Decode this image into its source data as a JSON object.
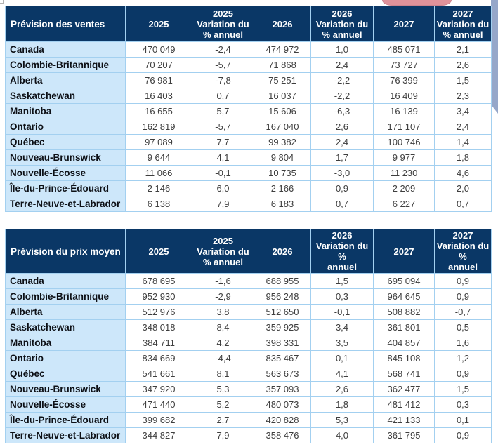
{
  "decor": {
    "header_navy": "#0a3766",
    "row_label_blue": "#cde7fa",
    "grid_border_blue": "#a3d0f0",
    "pink_shape_color": "#e0929a",
    "scroll_strip_color": "#96a7c9"
  },
  "chart_data": [
    {
      "type": "table",
      "title": "Prévision des ventes",
      "header": [
        "2025",
        "2025\nVariation du\n% annuel",
        "2026",
        "2026\nVariation du\n% annuel",
        "2027",
        "2027\nVariation du\n% annuel"
      ],
      "rows": [
        {
          "label": "Canada",
          "values": [
            "470 049",
            "-2,4",
            "474 972",
            "1,0",
            "485 071",
            "2,1"
          ]
        },
        {
          "label": "Colombie-Britannique",
          "values": [
            "70 207",
            "-5,7",
            "71 868",
            "2,4",
            "73 727",
            "2,6"
          ]
        },
        {
          "label": "Alberta",
          "values": [
            "76 981",
            "-7,8",
            "75 251",
            "-2,2",
            "76 399",
            "1,5"
          ]
        },
        {
          "label": "Saskatchewan",
          "values": [
            "16 403",
            "0,7",
            "16 037",
            "-2,2",
            "16 409",
            "2,3"
          ]
        },
        {
          "label": "Manitoba",
          "values": [
            "16 655",
            "5,7",
            "15 606",
            "-6,3",
            "16 139",
            "3,4"
          ]
        },
        {
          "label": "Ontario",
          "values": [
            "162 819",
            "-5,7",
            "167 040",
            "2,6",
            "171 107",
            "2,4"
          ]
        },
        {
          "label": "Québec",
          "values": [
            "97 089",
            "7,7",
            "99 382",
            "2,4",
            "100 746",
            "1,4"
          ]
        },
        {
          "label": "Nouveau-Brunswick",
          "values": [
            "9 644",
            "4,1",
            "9 804",
            "1,7",
            "9 977",
            "1,8"
          ]
        },
        {
          "label": "Nouvelle-Écosse",
          "values": [
            "11 066",
            "-0,1",
            "10 735",
            "-3,0",
            "11 230",
            "4,6"
          ]
        },
        {
          "label": "Île-du-Prince-Édouard",
          "values": [
            "2 146",
            "6,0",
            "2 166",
            "0,9",
            "2 209",
            "2,0"
          ]
        },
        {
          "label": "Terre-Neuve-et-Labrador",
          "values": [
            "6 138",
            "7,9",
            "6 183",
            "0,7",
            "6 227",
            "0,7"
          ]
        }
      ]
    },
    {
      "type": "table",
      "title": "Prévision du prix moyen",
      "header": [
        "2025",
        "2025\nVariation du\n% annuel",
        "2026",
        "2026\nVariation du %\nannuel",
        "2027",
        "2027\nVariation du %\nannuel"
      ],
      "rows": [
        {
          "label": "Canada",
          "values": [
            "678 695",
            "-1,6",
            "688 955",
            "1,5",
            "695 094",
            "0,9"
          ]
        },
        {
          "label": "Colombie-Britannique",
          "values": [
            "952 930",
            "-2,9",
            "956 248",
            "0,3",
            "964 645",
            "0,9"
          ]
        },
        {
          "label": "Alberta",
          "values": [
            "512 976",
            "3,8",
            "512 650",
            "-0,1",
            "508 882",
            "-0,7"
          ]
        },
        {
          "label": "Saskatchewan",
          "values": [
            "348 018",
            "8,4",
            "359 925",
            "3,4",
            "361 801",
            "0,5"
          ]
        },
        {
          "label": "Manitoba",
          "values": [
            "384 711",
            "4,2",
            "398 331",
            "3,5",
            "404 857",
            "1,6"
          ]
        },
        {
          "label": "Ontario",
          "values": [
            "834 669",
            "-4,4",
            "835 467",
            "0,1",
            "845 108",
            "1,2"
          ]
        },
        {
          "label": "Québec",
          "values": [
            "541 661",
            "8,1",
            "563 673",
            "4,1",
            "568 741",
            "0,9"
          ]
        },
        {
          "label": "Nouveau-Brunswick",
          "values": [
            "347 920",
            "5,3",
            "357 093",
            "2,6",
            "362 477",
            "1,5"
          ]
        },
        {
          "label": "Nouvelle-Écosse",
          "values": [
            "471 440",
            "5,2",
            "480 073",
            "1,8",
            "481 412",
            "0,3"
          ]
        },
        {
          "label": "Île-du-Prince-Édouard",
          "values": [
            "399 682",
            "2,7",
            "420 828",
            "5,3",
            "421 133",
            "0,1"
          ]
        },
        {
          "label": "Terre-Neuve-et-Labrador",
          "values": [
            "344 827",
            "7,9",
            "358 476",
            "4,0",
            "361 795",
            "0,9"
          ]
        }
      ]
    }
  ]
}
